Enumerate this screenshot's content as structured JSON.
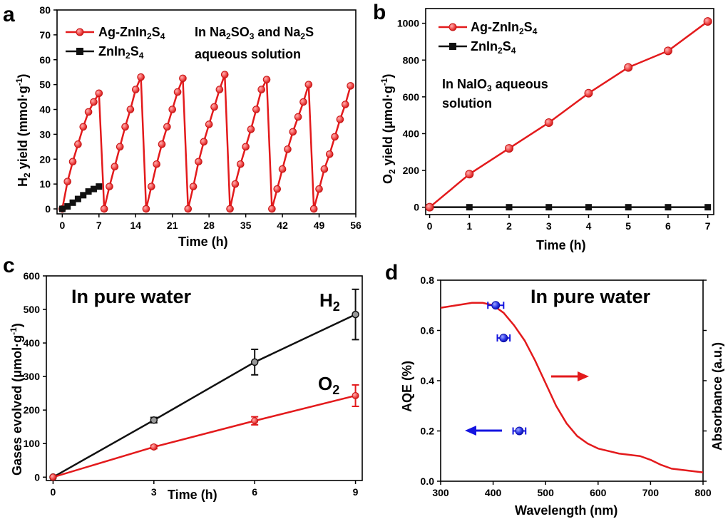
{
  "colors": {
    "red": "#e31a1c",
    "black": "#111111",
    "blue": "#1414e0",
    "ball_fill": "#f15a5a"
  },
  "chart_data": [
    {
      "panel": "a",
      "type": "line",
      "xlabel": "Time (h)",
      "ylabel": "H₂ yield (mmol·g⁻¹)",
      "xlim": [
        -1,
        56
      ],
      "ylim": [
        -2,
        80
      ],
      "xticks": [
        "0",
        "7",
        "14",
        "21",
        "28",
        "35",
        "42",
        "49",
        "56"
      ],
      "yticks": [
        "0",
        "10",
        "20",
        "30",
        "40",
        "50",
        "60",
        "70",
        "80"
      ],
      "legend": [
        "Ag-ZnIn₂S₄",
        "ZnIn₂S₄"
      ],
      "annotation": [
        "In Na₂SO₃ and Na₂S",
        "aqueous solution"
      ],
      "series": [
        {
          "name": "Ag-ZnIn₂S₄",
          "cycles": [
            {
              "x": [
                0,
                1,
                2,
                3,
                4,
                5,
                6,
                7
              ],
              "y": [
                0,
                11,
                19,
                26,
                33,
                39,
                43,
                46.5
              ]
            },
            {
              "x": [
                8,
                9,
                10,
                11,
                12,
                13,
                14,
                15
              ],
              "y": [
                0,
                9,
                17,
                25,
                33,
                40,
                48,
                53
              ]
            },
            {
              "x": [
                16,
                17,
                18,
                19,
                20,
                21,
                22,
                23
              ],
              "y": [
                0,
                9,
                18,
                26,
                33,
                40,
                47,
                52.5
              ]
            },
            {
              "x": [
                24,
                25,
                26,
                27,
                28,
                29,
                30,
                31
              ],
              "y": [
                0,
                9,
                19,
                27,
                34,
                41,
                48,
                54
              ]
            },
            {
              "x": [
                32,
                33,
                34,
                35,
                36,
                37,
                38,
                39
              ],
              "y": [
                0,
                10,
                18,
                25,
                32,
                40,
                48,
                52
              ]
            },
            {
              "x": [
                40,
                41,
                42,
                43,
                44,
                45,
                46,
                47
              ],
              "y": [
                0,
                8,
                16,
                24,
                31,
                37,
                43,
                50
              ]
            },
            {
              "x": [
                48,
                49,
                50,
                51,
                52,
                53,
                54,
                55
              ],
              "y": [
                0,
                8,
                16,
                22,
                29,
                36,
                42,
                49.5
              ]
            }
          ]
        },
        {
          "name": "ZnIn₂S₄",
          "x": [
            0,
            1,
            2,
            3,
            4,
            5,
            6,
            7
          ],
          "y": [
            0,
            1,
            2.5,
            4,
            5.5,
            7,
            8,
            9
          ]
        }
      ]
    },
    {
      "panel": "b",
      "type": "line",
      "xlabel": "Time (h)",
      "ylabel": "O₂ yield (μmol·g⁻¹)",
      "xlim": [
        -0.1,
        7.15
      ],
      "ylim": [
        -40,
        1080
      ],
      "xticks": [
        "0",
        "1",
        "2",
        "3",
        "4",
        "5",
        "6",
        "7"
      ],
      "yticks": [
        "0",
        "200",
        "400",
        "600",
        "800",
        "1000"
      ],
      "legend": [
        "Ag-ZnIn₂S₄",
        "ZnIn₂S₄"
      ],
      "annotation": [
        "In NaIO₃ aqueous",
        "solution"
      ],
      "series": [
        {
          "name": "Ag-ZnIn₂S₄",
          "x": [
            0,
            1,
            2,
            3,
            4,
            5,
            6,
            7
          ],
          "y": [
            0,
            180,
            320,
            460,
            620,
            760,
            850,
            1010
          ]
        },
        {
          "name": "ZnIn₂S₄",
          "x": [
            0,
            1,
            2,
            3,
            4,
            5,
            6,
            7
          ],
          "y": [
            0,
            0,
            0,
            0,
            0,
            0,
            0,
            0
          ]
        }
      ]
    },
    {
      "panel": "c",
      "type": "line",
      "xlabel": "Time (h)",
      "ylabel": "Gases evolved (μmol·g⁻¹)",
      "xlim": [
        -0.2,
        9.2
      ],
      "ylim": [
        -10,
        600
      ],
      "xticks": [
        "0",
        "3",
        "6",
        "9"
      ],
      "yticks": [
        "0",
        "100",
        "200",
        "300",
        "400",
        "500",
        "600"
      ],
      "annotation": "In pure water",
      "series": [
        {
          "name": "H₂",
          "x": [
            0,
            3,
            6,
            9
          ],
          "y": [
            0,
            170,
            343,
            485
          ],
          "err": [
            0,
            8,
            38,
            75
          ]
        },
        {
          "name": "O₂",
          "x": [
            0,
            3,
            6,
            9
          ],
          "y": [
            0,
            90,
            168,
            243
          ],
          "err": [
            0,
            5,
            12,
            32
          ]
        }
      ]
    },
    {
      "panel": "d",
      "type": "scatter+line",
      "xlabel": "Wavelength (nm)",
      "ylabel_left": "AQE (%)",
      "ylabel_right": "Absorbance (a.u.)",
      "xlim": [
        300,
        800
      ],
      "ylim": [
        0.0,
        0.8
      ],
      "xticks": [
        "300",
        "400",
        "500",
        "600",
        "700",
        "800"
      ],
      "yticks": [
        "0.0",
        "0.2",
        "0.4",
        "0.6",
        "0.8"
      ],
      "annotation": "In pure water",
      "aqe_points": {
        "x": [
          405,
          420,
          450
        ],
        "y": [
          0.7,
          0.57,
          0.2
        ],
        "xerr": [
          15,
          12,
          12
        ]
      },
      "absorbance_curve": {
        "x": [
          300,
          330,
          360,
          380,
          400,
          420,
          440,
          460,
          480,
          500,
          520,
          540,
          560,
          580,
          600,
          620,
          640,
          660,
          680,
          700,
          720,
          740,
          760,
          780,
          800
        ],
        "y": [
          0.69,
          0.7,
          0.71,
          0.71,
          0.7,
          0.67,
          0.62,
          0.56,
          0.48,
          0.39,
          0.3,
          0.23,
          0.18,
          0.15,
          0.13,
          0.12,
          0.11,
          0.105,
          0.1,
          0.085,
          0.065,
          0.05,
          0.045,
          0.04,
          0.035
        ]
      }
    }
  ]
}
